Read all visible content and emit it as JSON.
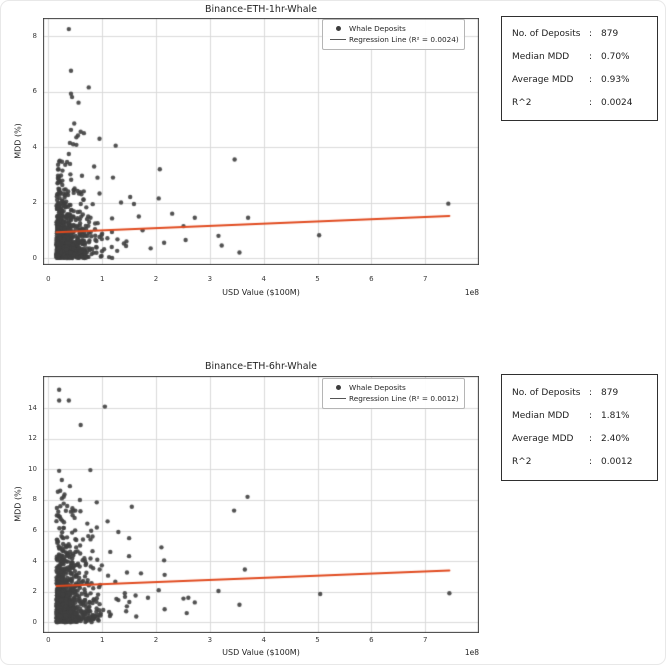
{
  "colors": {
    "point": "#3f3f3f",
    "regression_line": "#e0491e",
    "grid": "#d9d9d9",
    "spine": "#3c3c3c",
    "legend_line_sample": "#555555",
    "text": "#262626",
    "stats_border": "#2f2f2f",
    "card_border": "#e8e8e8",
    "background": "#ffffff"
  },
  "chart_data": [
    {
      "type": "scatter",
      "title": "Binance-ETH-1hr-Whale",
      "xlabel": "USD Value ($100M)",
      "ylabel": "MDD (%)",
      "x_offset_label": "1e8",
      "xlim": [
        -0.1,
        8.0
      ],
      "ylim": [
        -0.25,
        8.65
      ],
      "xticks": [
        0,
        1,
        2,
        3,
        4,
        5,
        6,
        7
      ],
      "yticks": [
        0,
        2,
        4,
        6,
        8
      ],
      "grid": true,
      "legend": {
        "position": "upper right",
        "marker_label": "Whale Deposits",
        "line_label": "Regression Line (R² = 0.0024)"
      },
      "regression_line": {
        "x1": 0.15,
        "y1": 0.93,
        "x2": 7.45,
        "y2": 1.52,
        "r2": 0.0024
      },
      "outlier_points": [
        [
          0.38,
          8.25
        ],
        [
          0.42,
          6.75
        ],
        [
          0.75,
          6.15
        ],
        [
          0.42,
          5.92
        ],
        [
          0.44,
          5.8
        ],
        [
          0.56,
          5.6
        ],
        [
          0.48,
          4.85
        ],
        [
          0.42,
          4.62
        ],
        [
          0.6,
          4.55
        ],
        [
          0.66,
          4.5
        ],
        [
          0.55,
          4.42
        ],
        [
          0.52,
          4.35
        ],
        [
          0.95,
          4.3
        ],
        [
          0.4,
          4.15
        ],
        [
          0.46,
          4.1
        ],
        [
          0.52,
          4.08
        ],
        [
          1.25,
          4.05
        ],
        [
          0.38,
          3.75
        ],
        [
          3.46,
          3.55
        ],
        [
          2.07,
          3.2
        ],
        [
          0.85,
          3.3
        ],
        [
          1.2,
          2.9
        ],
        [
          1.52,
          2.2
        ],
        [
          2.05,
          2.15
        ],
        [
          1.59,
          1.95
        ],
        [
          1.35,
          2.0
        ],
        [
          1.68,
          1.5
        ],
        [
          2.72,
          1.45
        ],
        [
          2.51,
          1.15
        ],
        [
          3.71,
          1.45
        ],
        [
          3.16,
          0.8
        ],
        [
          3.22,
          0.45
        ],
        [
          3.55,
          0.2
        ],
        [
          5.03,
          0.82
        ],
        [
          7.43,
          1.96
        ],
        [
          2.15,
          0.55
        ],
        [
          2.55,
          0.65
        ],
        [
          1.9,
          0.35
        ],
        [
          1.45,
          0.6
        ],
        [
          1.75,
          1.0
        ],
        [
          2.3,
          1.6
        ]
      ],
      "cluster": {
        "count": 838,
        "seed": 1234567,
        "x_min": 0.15,
        "x_mean": 0.22,
        "x_cap": 2.2,
        "y_mean": 0.78,
        "y_cap": 3.55
      },
      "stats": {
        "rows": [
          {
            "label": "No. of Deposits",
            "sep": ":",
            "value": "879"
          },
          {
            "label": "Median MDD",
            "sep": ":",
            "value": "0.70%"
          },
          {
            "label": "Average MDD",
            "sep": ":",
            "value": "0.93%"
          },
          {
            "label": "R^2",
            "sep": ":",
            "value": "0.0024"
          }
        ]
      }
    },
    {
      "type": "scatter",
      "title": "Binance-ETH-6hr-Whale",
      "xlabel": "USD Value ($100M)",
      "ylabel": "MDD (%)",
      "x_offset_label": "1e8",
      "xlim": [
        -0.1,
        8.0
      ],
      "ylim": [
        -0.7,
        16.1
      ],
      "xticks": [
        0,
        1,
        2,
        3,
        4,
        5,
        6,
        7
      ],
      "yticks": [
        0,
        2,
        4,
        6,
        8,
        10,
        12,
        14
      ],
      "grid": true,
      "legend": {
        "position": "upper right",
        "marker_label": "Whale Deposits",
        "line_label": "Regression Line (R² = 0.0012)"
      },
      "regression_line": {
        "x1": 0.15,
        "y1": 2.38,
        "x2": 7.45,
        "y2": 3.38,
        "r2": 0.0012
      },
      "outlier_points": [
        [
          0.2,
          15.2
        ],
        [
          0.2,
          14.5
        ],
        [
          0.38,
          14.5
        ],
        [
          1.05,
          14.1
        ],
        [
          0.6,
          12.9
        ],
        [
          0.2,
          9.9
        ],
        [
          0.78,
          9.95
        ],
        [
          0.25,
          9.3
        ],
        [
          0.4,
          8.9
        ],
        [
          0.22,
          8.6
        ],
        [
          0.3,
          8.35
        ],
        [
          0.25,
          8.1
        ],
        [
          3.7,
          8.2
        ],
        [
          1.55,
          7.55
        ],
        [
          3.45,
          7.3
        ],
        [
          0.35,
          7.6
        ],
        [
          0.5,
          7.3
        ],
        [
          0.45,
          7.0
        ],
        [
          1.1,
          6.6
        ],
        [
          0.9,
          6.2
        ],
        [
          1.3,
          5.9
        ],
        [
          1.5,
          5.5
        ],
        [
          2.1,
          4.9
        ],
        [
          1.15,
          4.6
        ],
        [
          2.15,
          4.05
        ],
        [
          1.46,
          3.25
        ],
        [
          1.72,
          3.2
        ],
        [
          2.16,
          3.1
        ],
        [
          3.65,
          3.45
        ],
        [
          2.05,
          2.1
        ],
        [
          3.16,
          2.05
        ],
        [
          5.05,
          1.85
        ],
        [
          7.45,
          1.9
        ],
        [
          2.16,
          0.85
        ],
        [
          2.57,
          0.6
        ],
        [
          3.55,
          1.15
        ],
        [
          2.51,
          1.55
        ],
        [
          2.72,
          1.3
        ],
        [
          1.85,
          1.6
        ],
        [
          1.62,
          1.75
        ],
        [
          1.42,
          1.9
        ],
        [
          1.3,
          1.45
        ],
        [
          2.6,
          1.6
        ]
      ],
      "cluster": {
        "count": 836,
        "seed": 7654321,
        "x_min": 0.15,
        "x_mean": 0.22,
        "x_cap": 2.2,
        "y_mean": 1.9,
        "y_cap": 8.55
      },
      "stats": {
        "rows": [
          {
            "label": "No. of Deposits",
            "sep": ":",
            "value": "879"
          },
          {
            "label": "Median MDD",
            "sep": ":",
            "value": "1.81%"
          },
          {
            "label": "Average MDD",
            "sep": ":",
            "value": "2.40%"
          },
          {
            "label": "R^2",
            "sep": ":",
            "value": "0.0012"
          }
        ]
      }
    }
  ]
}
